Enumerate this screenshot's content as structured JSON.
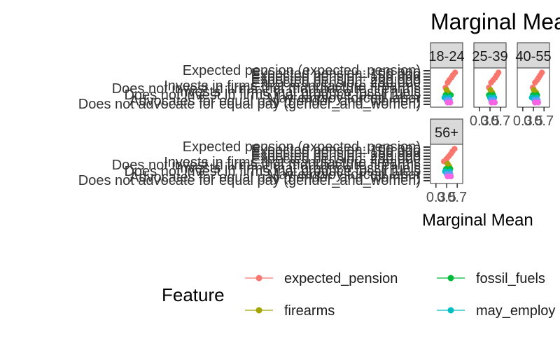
{
  "chart_data": {
    "type": "scatter",
    "title": "Marginal Means",
    "xlabel": "Marginal Mean",
    "ylabel": "",
    "facets": [
      "18-24",
      "25-39",
      "40-55",
      "56+"
    ],
    "x_ticks": [
      "0.3",
      "0.5",
      "0.7"
    ],
    "y_labels": [
      "Expected pension (expected_pension)",
      "Expected pension: 100,000",
      "Expected pension: 150,000",
      "Expected pension: 200,000",
      "Expected pension: 250,000",
      "Invests in firms that manufacture firearms",
      "Does not invest in firms that manufacture firearms",
      "Invests in firms that produce fossil fuels",
      "Does not invest in firms that produce fossil fuels",
      "May employ forced labor",
      "Advocates for equal pay (gender_and_women)",
      "Does not advocate for equal pay (gender_and_women)"
    ],
    "legend": {
      "title": "Feature",
      "position": "bottom",
      "items": [
        {
          "name": "expected_pension",
          "color": "#F8766D"
        },
        {
          "name": "fossil_fuels",
          "color": "#00BA38"
        },
        {
          "name": "firearms",
          "color": "#A3A500"
        },
        {
          "name": "may_employ",
          "color": "#00BFC4"
        }
      ]
    },
    "series": [
      {
        "name": "expected_pension",
        "color": "#F8766D",
        "facets": {
          "18-24": [
            [
              0.66,
              1
            ],
            [
              0.62,
              2
            ],
            [
              0.59,
              3
            ],
            [
              0.55,
              4
            ],
            [
              0.52,
              5
            ],
            [
              0.48,
              7
            ]
          ],
          "25-39": [
            [
              0.66,
              1
            ],
            [
              0.63,
              2
            ],
            [
              0.6,
              3
            ],
            [
              0.56,
              4
            ],
            [
              0.52,
              5
            ],
            [
              0.48,
              7
            ]
          ],
          "40-55": [
            [
              0.66,
              1
            ],
            [
              0.63,
              2
            ],
            [
              0.6,
              3
            ],
            [
              0.57,
              4
            ],
            [
              0.53,
              5
            ],
            [
              0.49,
              7
            ]
          ],
          "56+": [
            [
              0.65,
              1
            ],
            [
              0.61,
              2
            ],
            [
              0.58,
              3
            ],
            [
              0.54,
              4
            ],
            [
              0.5,
              5
            ],
            [
              0.45,
              6
            ]
          ]
        }
      },
      {
        "name": "firearms",
        "color": "#A3A500",
        "facets": {
          "18-24": [
            [
              0.5,
              8
            ],
            [
              0.53,
              9
            ]
          ],
          "25-39": [
            [
              0.51,
              8
            ],
            [
              0.54,
              9
            ]
          ],
          "40-55": [
            [
              0.51,
              8
            ],
            [
              0.55,
              9
            ]
          ],
          "56+": [
            [
              0.52,
              7
            ],
            [
              0.55,
              8
            ]
          ]
        }
      },
      {
        "name": "fossil_fuels",
        "color": "#00BA38",
        "facets": {
          "18-24": [
            [
              0.48,
              10
            ],
            [
              0.58,
              10
            ]
          ],
          "25-39": [
            [
              0.48,
              10
            ],
            [
              0.56,
              10
            ]
          ],
          "40-55": [
            [
              0.49,
              10
            ],
            [
              0.57,
              10
            ]
          ],
          "56+": [
            [
              0.49,
              9
            ],
            [
              0.57,
              9
            ]
          ]
        }
      },
      {
        "name": "may_employ",
        "color": "#00BFC4",
        "facets": {
          "18-24": [
            [
              0.46,
              11
            ],
            [
              0.55,
              11
            ]
          ],
          "25-39": [
            [
              0.5,
              11
            ],
            [
              0.58,
              11
            ]
          ],
          "40-55": [
            [
              0.47,
              11
            ],
            [
              0.56,
              11
            ]
          ],
          "56+": [
            [
              0.47,
              10
            ],
            [
              0.56,
              10
            ]
          ]
        }
      },
      {
        "name": "",
        "color": "#619CFF",
        "facets": {
          "18-24": [
            [
              0.5,
              12
            ],
            [
              0.56,
              12
            ]
          ],
          "25-39": [
            [
              0.52,
              12
            ],
            [
              0.57,
              12
            ]
          ],
          "40-55": [
            [
              0.52,
              12
            ],
            [
              0.58,
              12
            ]
          ],
          "56+": [
            [
              0.5,
              11
            ],
            [
              0.57,
              11
            ]
          ]
        }
      },
      {
        "name": "",
        "color": "#F564E3",
        "facets": {
          "18-24": [
            [
              0.52,
              13
            ],
            [
              0.57,
              13
            ]
          ],
          "25-39": [
            [
              0.53,
              13
            ],
            [
              0.59,
              13
            ]
          ],
          "40-55": [
            [
              0.53,
              13
            ],
            [
              0.59,
              13
            ]
          ],
          "56+": [
            [
              0.52,
              12
            ],
            [
              0.58,
              12
            ]
          ]
        }
      }
    ]
  }
}
